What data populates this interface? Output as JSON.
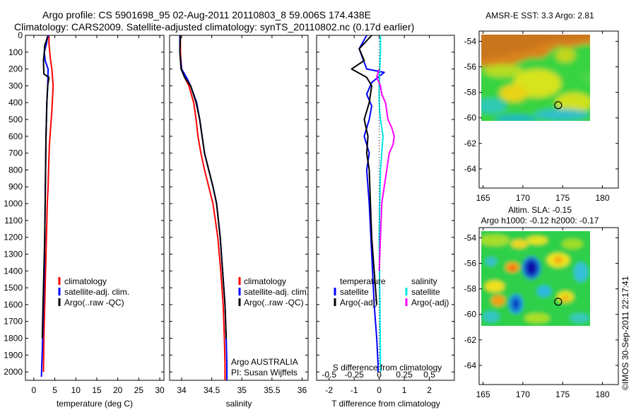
{
  "title": {
    "line1": "Argo profile: CS 5901698_95 02-Aug-2011 20110803_8 59.006S 174.438E",
    "line2": "Climatology: CARS2009. Satellite-adjusted climatology: synTS_20110802.nc (0.17d earlier)"
  },
  "colors": {
    "climatology": "#ff0000",
    "satellite": "#0000ff",
    "argo": "#000000",
    "sat_salinity": "#00e5e5",
    "argo_salinity": "#ff00ff"
  },
  "chart_data": [
    {
      "type": "line",
      "id": "temperature-panel",
      "xlabel": "temperature (deg C)",
      "xlim": [
        -2,
        31
      ],
      "xticks": [
        0,
        5,
        10,
        15,
        20,
        25,
        30
      ],
      "ylim": [
        2050,
        0
      ],
      "yticks": [
        0,
        100,
        200,
        300,
        400,
        500,
        600,
        700,
        800,
        900,
        1000,
        1100,
        1200,
        1300,
        1400,
        1500,
        1600,
        1700,
        1800,
        1900,
        2000
      ],
      "legend": [
        "climatology",
        "satellite-adj. clim.",
        "Argo(..raw -QC)"
      ],
      "series": [
        {
          "name": "climatology",
          "color": "#ff0000",
          "x": [
            3.6,
            3.6,
            3.8,
            4.0,
            4.3,
            4.6,
            4.3,
            4.0,
            3.7,
            3.5,
            3.4,
            3.2,
            3.1,
            3.0,
            2.9,
            2.8,
            2.7,
            2.6,
            2.5,
            2.4,
            2.3
          ],
          "y": [
            0,
            50,
            100,
            150,
            200,
            300,
            450,
            550,
            650,
            800,
            900,
            1000,
            1100,
            1200,
            1300,
            1400,
            1500,
            1600,
            1700,
            1800,
            2000
          ]
        },
        {
          "name": "satellite-adj. clim.",
          "color": "#0000ff",
          "x": [
            3.5,
            3.2,
            3.0,
            2.5,
            2.7,
            3.4,
            3.3,
            3.1,
            3.0,
            2.9,
            2.8,
            2.7,
            2.6,
            2.5,
            2.3,
            2.1,
            1.9,
            1.8
          ],
          "y": [
            0,
            20,
            50,
            100,
            150,
            200,
            300,
            400,
            500,
            600,
            800,
            1000,
            1200,
            1400,
            1600,
            1800,
            1950,
            2030
          ]
        },
        {
          "name": "Argo(..raw -QC)",
          "color": "#000000",
          "x": [
            3.3,
            3.0,
            2.6,
            2.5,
            2.3,
            2.4,
            3.6,
            3.3,
            3.1,
            3.0,
            2.9,
            2.8,
            2.7,
            2.6,
            2.4,
            2.2,
            2.0
          ],
          "y": [
            5,
            30,
            60,
            100,
            150,
            230,
            250,
            300,
            400,
            500,
            600,
            800,
            1000,
            1200,
            1400,
            1600,
            1800
          ]
        }
      ]
    },
    {
      "type": "line",
      "id": "salinity-panel",
      "xlabel": "salinity",
      "xlim": [
        33.8,
        36.1
      ],
      "xticks": [
        34,
        34.5,
        35,
        35.5,
        36
      ],
      "ylim": [
        2050,
        0
      ],
      "legend": [
        "climatology",
        "satellite-adj. clim.",
        "Argo(..raw -QC)"
      ],
      "annotation": [
        "Argo AUSTRALIA",
        "PI: Susan Wijffels"
      ],
      "series": [
        {
          "name": "climatology",
          "color": "#ff0000",
          "x": [
            33.98,
            33.98,
            34.0,
            34.05,
            34.12,
            34.2,
            34.24,
            34.27,
            34.32,
            34.38,
            34.45,
            34.52,
            34.6,
            34.65,
            34.69,
            34.71,
            34.72,
            34.72
          ],
          "y": [
            0,
            100,
            200,
            250,
            300,
            400,
            500,
            600,
            700,
            800,
            900,
            1000,
            1200,
            1400,
            1600,
            1800,
            1950,
            2050
          ]
        },
        {
          "name": "satellite-adj. clim.",
          "color": "#0000ff",
          "x": [
            33.97,
            33.97,
            34.0,
            34.08,
            34.15,
            34.25,
            34.3,
            34.34,
            34.38,
            34.45,
            34.52,
            34.58,
            34.64,
            34.68,
            34.72,
            34.74,
            34.75,
            34.75
          ],
          "y": [
            0,
            100,
            200,
            250,
            300,
            400,
            500,
            600,
            700,
            800,
            900,
            1000,
            1200,
            1400,
            1600,
            1800,
            1950,
            2050
          ]
        },
        {
          "name": "Argo(..raw -QC)",
          "color": "#000000",
          "x": [
            33.98,
            33.97,
            33.99,
            34.05,
            34.15,
            34.24,
            34.3,
            34.34,
            34.38,
            34.45,
            34.52,
            34.58,
            34.64,
            34.68,
            34.72,
            34.74
          ],
          "y": [
            0,
            100,
            200,
            250,
            300,
            400,
            500,
            600,
            700,
            800,
            900,
            1000,
            1200,
            1400,
            1600,
            1800
          ]
        }
      ]
    },
    {
      "type": "line",
      "id": "difference-panel",
      "xlabel": "T difference from climatology",
      "xlabel_top": "S difference from climatology",
      "xlim": [
        -2.5,
        3
      ],
      "xticks": [
        -2,
        -1,
        0,
        1,
        2
      ],
      "sticks": [
        "-0.5",
        "-0.25",
        "0",
        "0.25",
        "0.5"
      ],
      "ylim": [
        2050,
        0
      ],
      "legend": {
        "temperature": {
          "title": "temperature",
          "items": [
            "satellite",
            "Argo(-adj)"
          ]
        },
        "salinity": {
          "title": "salinity",
          "items": [
            "satellite",
            "Argo(-adj)"
          ]
        }
      },
      "series": [
        {
          "name": "temperature satellite",
          "color": "#0000ff",
          "x": [
            -0.5,
            -0.8,
            -0.5,
            0.2,
            -0.3,
            -0.5,
            -0.3,
            -0.4,
            -0.6,
            -0.4,
            -0.5,
            -0.4,
            -0.3,
            -0.2,
            -0.1,
            -0.05,
            -0.05
          ],
          "y": [
            0,
            80,
            200,
            220,
            280,
            350,
            420,
            500,
            600,
            700,
            800,
            1000,
            1300,
            1600,
            1800,
            1950,
            2000
          ]
        },
        {
          "name": "temperature Argo(-adj)",
          "color": "#000000",
          "x": [
            -0.3,
            -0.8,
            -0.6,
            -1.1,
            -0.5,
            -0.3,
            -0.4,
            -0.6,
            -0.45,
            -0.5,
            -0.4,
            -0.35,
            -0.3,
            -0.2,
            -0.1
          ],
          "y": [
            0,
            80,
            150,
            200,
            250,
            300,
            400,
            500,
            600,
            700,
            800,
            1000,
            1200,
            1400,
            1600
          ]
        },
        {
          "name": "salinity satellite",
          "color": "#00e5e5",
          "x": [
            0.05,
            0.05,
            0.02,
            0.0,
            0.0,
            0.02,
            0.05,
            0.1,
            0.15,
            0.1,
            0.05,
            0.02,
            0.0,
            0.02,
            0.04,
            0.05,
            0.06
          ],
          "y": [
            0,
            100,
            200,
            300,
            400,
            450,
            500,
            550,
            600,
            700,
            800,
            1000,
            1200,
            1500,
            1800,
            1950,
            2000
          ]
        },
        {
          "name": "salinity Argo(-adj)",
          "color": "#ff00ff",
          "x": [
            0.0,
            -0.1,
            0.05,
            0.1,
            0.25,
            0.35,
            0.5,
            0.6,
            0.55,
            0.4,
            0.3,
            0.2,
            0.1,
            0.05,
            0.0
          ],
          "y": [
            200,
            250,
            300,
            350,
            400,
            500,
            550,
            600,
            650,
            700,
            800,
            900,
            1000,
            1200,
            1400
          ]
        }
      ]
    },
    {
      "type": "heatmap",
      "id": "sst-map",
      "title": "AMSR-E SST: 3.3 Argo: 2.81",
      "xticks": [
        165,
        170,
        175,
        180
      ],
      "yticks": [
        -54,
        -56,
        -58,
        -60,
        -62,
        -64
      ],
      "xlim": [
        164.5,
        182
      ],
      "ylim": [
        -65.5,
        -53.2
      ],
      "data_extent": {
        "lon": [
          165.5,
          180
        ],
        "lat": [
          -60,
          -53.2
        ]
      },
      "marker": {
        "lon": 174.438,
        "lat": -59.006
      }
    },
    {
      "type": "heatmap",
      "id": "sla-map",
      "title_line1": "Altim. SLA: -0.15",
      "title_line2": "Argo h1000: -0.12 h2000: -0.17",
      "xticks": [
        165,
        170,
        175,
        180
      ],
      "yticks": [
        -54,
        -56,
        -58,
        -60,
        -62,
        -64
      ],
      "xlim": [
        164.5,
        182
      ],
      "ylim": [
        -65.5,
        -53.2
      ],
      "data_extent": {
        "lon": [
          165.5,
          180
        ],
        "lat": [
          -60,
          -53.2
        ]
      },
      "marker": {
        "lon": 174.438,
        "lat": -59.006
      }
    }
  ],
  "stamp": "©IMOS 30-Sep-2011 22:17:41"
}
